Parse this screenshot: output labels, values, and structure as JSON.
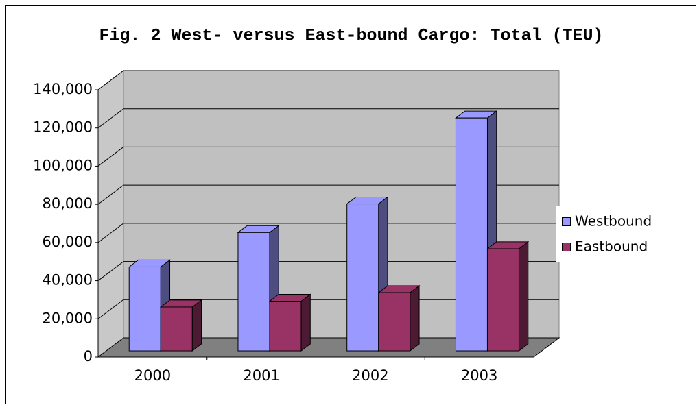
{
  "chart_data": {
    "type": "bar3d",
    "title": "Fig. 2 West- versus East-bound Cargo: Total (TEU)",
    "categories": [
      "2000",
      "2001",
      "2002",
      "2003"
    ],
    "series": [
      {
        "name": "Westbound",
        "color": "#9999ff",
        "values": [
          44000,
          62000,
          77000,
          122000
        ]
      },
      {
        "name": "Eastbound",
        "color": "#993366",
        "values": [
          23000,
          26000,
          30500,
          53500
        ]
      }
    ],
    "ylim": [
      0,
      140000
    ],
    "yticks": [
      0,
      {
        "value": 20000,
        "label": "20,000"
      },
      {
        "value": 40000,
        "label": "40,000"
      },
      {
        "value": 60000,
        "label": "60,000"
      },
      {
        "value": 80000,
        "label": "80,000"
      },
      {
        "value": 100000,
        "label": "100,000"
      },
      {
        "value": 120000,
        "label": "120,000"
      },
      {
        "value": 140000,
        "label": "140,000"
      }
    ],
    "grid": true,
    "legend": "right"
  }
}
